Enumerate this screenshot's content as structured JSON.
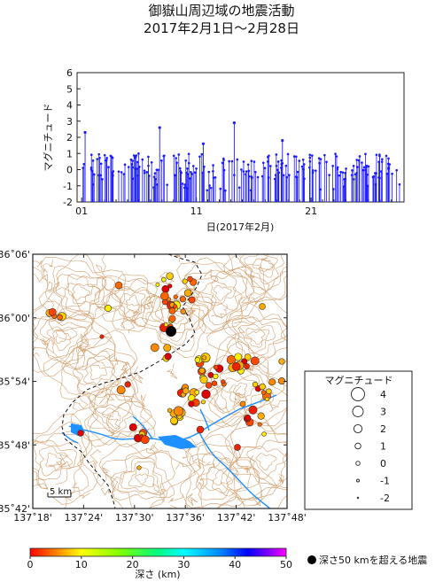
{
  "title": {
    "line1": "御嶽山周辺域の地震活動",
    "line2": "2017年2月1日～2月28日"
  },
  "chart_data": {
    "type": "scatter",
    "ylabel": "マグニチュード",
    "xlabel": "日(2017年2月)",
    "ylim": [
      -2,
      6
    ],
    "yticks": [
      "6",
      "5",
      "4",
      "3",
      "2",
      "1",
      "0",
      "-1",
      "-2"
    ],
    "xticks": [
      "01",
      "11",
      "21"
    ],
    "marker_color": "#1a1aff",
    "notable_events": [
      {
        "day": 1.3,
        "mag": 2.3
      },
      {
        "day": 7.8,
        "mag": 2.6
      },
      {
        "day": 14.3,
        "mag": 2.9
      },
      {
        "day": 11.6,
        "mag": 1.6
      },
      {
        "day": 18.5,
        "mag": 1.8
      }
    ]
  },
  "map": {
    "lat_labels": [
      "36˚06'",
      "36˚00'",
      "35˚54'",
      "35˚48'",
      "35˚42'"
    ],
    "lon_labels": [
      "137˚18'",
      "137˚24'",
      "137˚30'",
      "137˚36'",
      "137˚42'",
      "137˚48'"
    ],
    "scale_label": "5 km",
    "water_color": "#1e90ff",
    "contour_color": "#c8884a"
  },
  "legend": {
    "title": "マグニチュード",
    "labels": [
      "4",
      "3",
      "2",
      "1",
      "0",
      "-1",
      "-2"
    ]
  },
  "colorbar": {
    "ticks": [
      "0",
      "10",
      "20",
      "30",
      "40",
      "50"
    ],
    "label": "深さ (km)",
    "deep_note": "深さ50 kmを超える地震"
  }
}
